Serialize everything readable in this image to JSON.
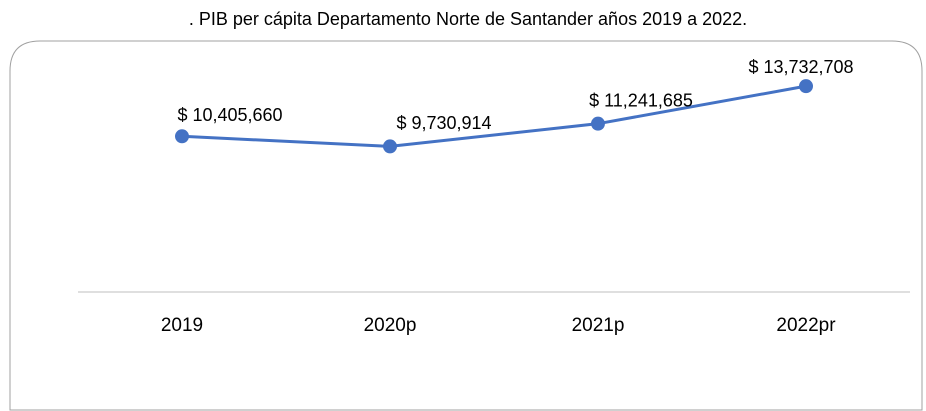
{
  "chart_data": {
    "type": "line",
    "title": ". PIB per cápita Departamento Norte de Santander años 2019 a 2022.",
    "categories": [
      "2019",
      "2020p",
      "2021p",
      "2022pr"
    ],
    "series": [
      {
        "name": "PIB per cápita",
        "color": "#4472c4",
        "values": [
          10405660,
          9730914,
          11241685,
          13732708
        ],
        "value_labels": [
          "$ 10,405,660",
          "$ 9,730,914",
          "$ 11,241,685",
          "$ 13,732,708"
        ]
      }
    ],
    "ylim": [
      0,
      16000000
    ]
  }
}
